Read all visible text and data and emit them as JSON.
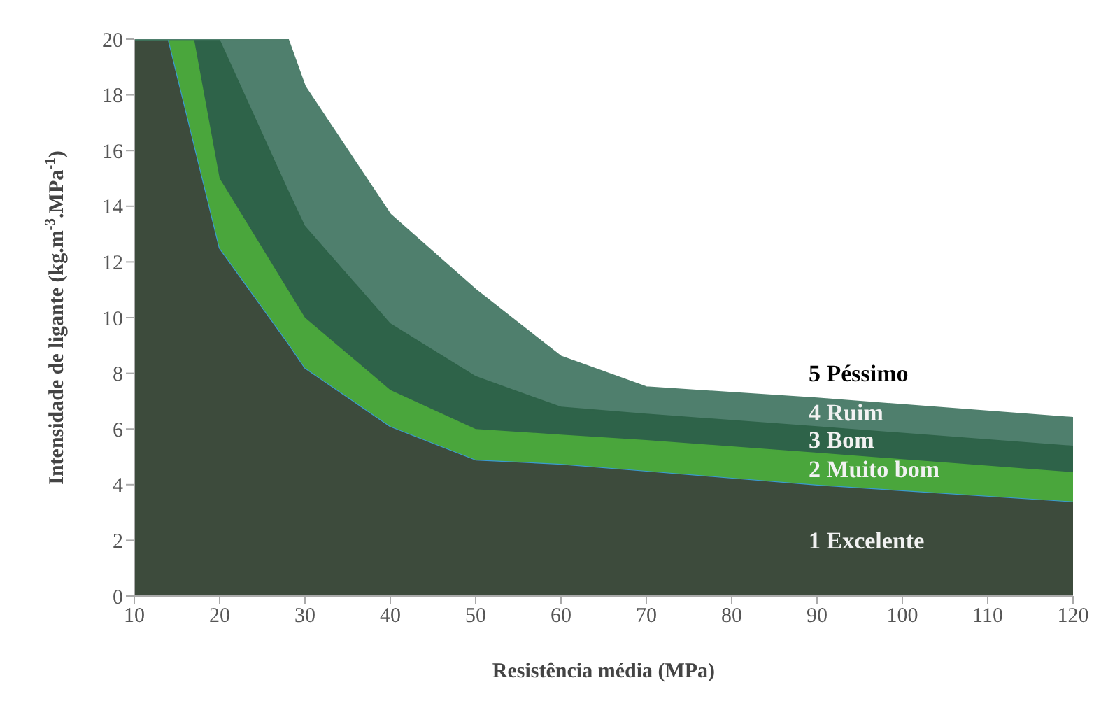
{
  "chart_data": {
    "type": "area",
    "stacked": true,
    "xlabel": "Resistência média (MPa)",
    "ylabel": "Intensidade de ligante (kg.m$^{-3}$.MPa$^{-1}$)",
    "xlim": [
      10,
      120
    ],
    "xticks": [
      10,
      20,
      30,
      40,
      50,
      60,
      70,
      80,
      90,
      100,
      110,
      120
    ],
    "ylim": [
      0,
      20
    ],
    "yticks": [
      0,
      2,
      4,
      6,
      8,
      10,
      12,
      14,
      16,
      18,
      20
    ],
    "grid": false,
    "x": [
      10,
      14,
      17,
      20,
      28,
      30,
      40,
      50,
      60,
      70,
      90,
      120
    ],
    "series": [
      {
        "name": "1 Excelente",
        "color": "#3d4b3c",
        "values": [
          20,
          20,
          16.25,
          12.5,
          9.1,
          8.2,
          6.1,
          4.9,
          4.75,
          4.5,
          4.0,
          3.4
        ]
      },
      {
        "name": "2 Muito bom",
        "color": "#4aa63c",
        "values": [
          0,
          0,
          3.75,
          2.5,
          1.9,
          1.8,
          1.3,
          1.1,
          1.05,
          1.1,
          1.15,
          1.05
        ]
      },
      {
        "name": "3 Bom",
        "color": "#2e6349",
        "values": [
          0,
          0,
          0,
          5,
          3.6,
          3.3,
          2.4,
          1.9,
          1.0,
          0.95,
          0.95,
          0.95
        ]
      },
      {
        "name": "4 Ruim",
        "color": "#4f7f6d",
        "values": [
          0,
          0,
          0,
          0,
          5.4,
          5.0,
          3.9,
          3.1,
          1.8,
          0.95,
          1.0,
          1.0
        ]
      }
    ],
    "annotations": [
      "5 Péssimo"
    ]
  }
}
